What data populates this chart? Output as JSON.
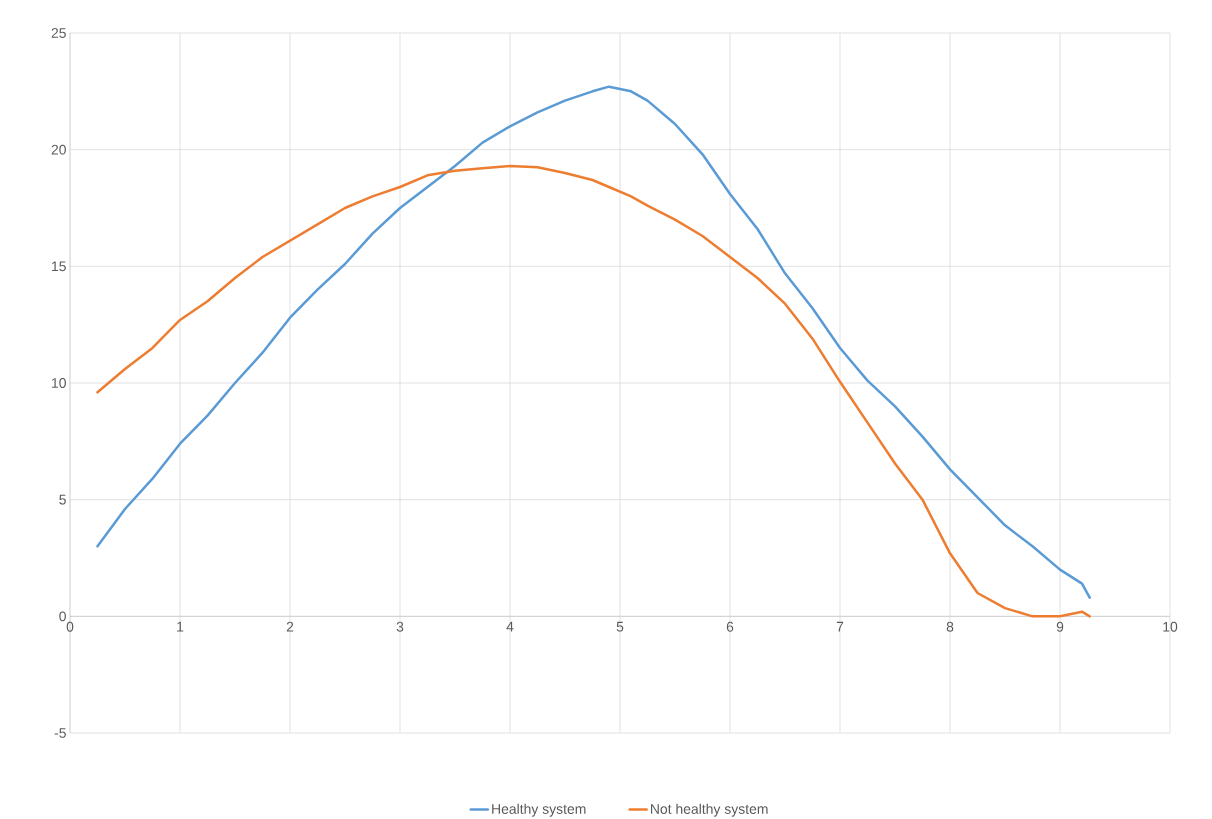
{
  "chart_data": {
    "type": "line",
    "xlim": [
      0,
      10
    ],
    "xticks": [
      0,
      1,
      2,
      3,
      4,
      5,
      6,
      7,
      8,
      9,
      10
    ],
    "ylim": [
      -5,
      25
    ],
    "yticks": [
      -5,
      0,
      5,
      10,
      15,
      20,
      25
    ],
    "grid": true,
    "legend": "bottom",
    "line_style": "solid",
    "x": [
      0.25,
      0.5,
      0.75,
      1.0,
      1.25,
      1.5,
      1.75,
      2.0,
      2.25,
      2.5,
      2.75,
      3.0,
      3.25,
      3.5,
      3.75,
      4.0,
      4.25,
      4.5,
      4.75,
      4.9,
      5.0,
      5.1,
      5.25,
      5.5,
      5.75,
      6.0,
      6.25,
      6.5,
      6.75,
      7.0,
      7.25,
      7.5,
      7.75,
      8.0,
      8.25,
      8.5,
      8.75,
      9.0,
      9.2,
      9.27
    ],
    "series": [
      {
        "name": "Healthy system",
        "color": "#5b9bd5",
        "values": [
          3.0,
          4.6,
          5.9,
          7.4,
          8.6,
          10.0,
          11.3,
          12.8,
          14.0,
          15.1,
          16.4,
          17.5,
          18.4,
          19.3,
          20.3,
          21.0,
          21.6,
          22.1,
          22.5,
          22.7,
          22.6,
          22.5,
          22.1,
          21.1,
          19.8,
          18.1,
          16.6,
          14.7,
          13.2,
          11.5,
          10.1,
          9.0,
          7.7,
          6.3,
          5.1,
          3.9,
          3.0,
          2.0,
          1.4,
          0.8
        ]
      },
      {
        "name": "Not healthy system",
        "color": "#ed7d31",
        "values": [
          9.6,
          10.6,
          11.5,
          12.7,
          13.5,
          14.5,
          15.4,
          16.1,
          16.8,
          17.5,
          18.0,
          18.4,
          18.9,
          19.1,
          19.2,
          19.3,
          19.25,
          19.0,
          18.7,
          18.4,
          18.2,
          18.0,
          17.6,
          17.0,
          16.3,
          15.4,
          14.5,
          13.4,
          11.9,
          10.05,
          8.3,
          6.55,
          5.0,
          2.7,
          1.0,
          0.35,
          0.0,
          0.0,
          0.2,
          0.0
        ]
      }
    ]
  }
}
